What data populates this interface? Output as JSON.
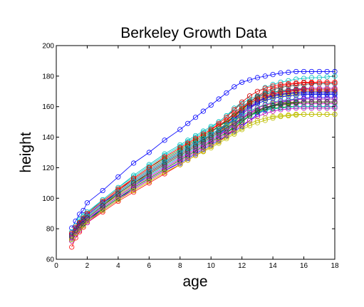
{
  "chart_data": {
    "type": "line",
    "title": "Berkeley Growth Data",
    "xlabel": "age",
    "ylabel": "height",
    "xlim": [
      0,
      18
    ],
    "ylim": [
      60,
      200
    ],
    "xticks": [
      "0",
      "2",
      "4",
      "6",
      "8",
      "10",
      "12",
      "14",
      "16",
      "18"
    ],
    "yticks": [
      "60",
      "80",
      "100",
      "120",
      "140",
      "160",
      "180",
      "200"
    ],
    "grid": false,
    "legend": "none",
    "marker": "circle",
    "x": [
      1,
      1.25,
      1.5,
      1.75,
      2,
      3,
      4,
      5,
      6,
      7,
      8,
      8.5,
      9,
      9.5,
      10,
      10.5,
      11,
      11.5,
      12,
      12.5,
      13,
      13.5,
      14,
      14.5,
      15,
      15.5,
      16,
      16.5,
      17,
      17.5,
      18
    ],
    "series": [
      {
        "color": "#0000ff",
        "values": [
          80.5,
          85,
          89.5,
          92,
          97,
          105,
          114,
          123,
          130,
          138,
          145,
          149,
          153,
          157,
          161,
          165,
          169,
          173,
          176,
          177.5,
          179,
          180,
          181,
          182,
          182.5,
          183,
          183,
          183,
          183,
          183,
          183
        ]
      },
      {
        "color": "#008000",
        "values": [
          76,
          80,
          84,
          86.5,
          89,
          97,
          104,
          111,
          118,
          124,
          130,
          133,
          136,
          138.5,
          141,
          144,
          147,
          151,
          155,
          159,
          162,
          164,
          165.5,
          166.5,
          167,
          167.5,
          168,
          168,
          168,
          168,
          168
        ]
      },
      {
        "color": "#ff0000",
        "values": [
          75,
          79,
          82.5,
          85,
          88,
          96,
          104,
          111,
          118,
          124,
          130,
          133,
          136,
          139,
          142,
          145,
          149,
          153,
          158,
          163,
          167,
          170,
          172,
          173.5,
          174.5,
          175,
          175.5,
          175.5,
          176,
          176,
          176
        ]
      },
      {
        "color": "#00bfbf",
        "values": [
          77,
          81,
          85,
          88,
          90,
          99,
          107,
          114,
          121,
          128,
          134,
          137,
          140,
          143,
          146,
          150,
          154,
          159,
          163,
          167,
          170,
          172.5,
          174.5,
          176,
          177,
          178,
          178.5,
          179,
          179,
          179.5,
          180
        ]
      },
      {
        "color": "#bf00bf",
        "values": [
          74,
          78,
          81,
          84,
          86,
          94,
          101,
          108,
          114,
          120,
          126,
          129,
          132,
          135,
          138,
          141,
          145,
          149,
          153,
          156,
          158,
          159.5,
          160.5,
          161,
          161.5,
          162,
          162,
          162,
          162,
          162,
          162
        ]
      },
      {
        "color": "#bfbf00",
        "values": [
          72,
          76,
          79,
          82,
          85,
          92,
          99,
          105,
          111,
          117,
          122,
          125,
          128,
          130.5,
          133,
          136,
          139,
          142,
          145,
          147.5,
          149.5,
          151,
          152.5,
          153.5,
          154,
          154.5,
          155,
          155,
          155,
          155,
          155
        ]
      },
      {
        "color": "#404040",
        "values": [
          76,
          80,
          83.5,
          86,
          89,
          97,
          105,
          112,
          119,
          125,
          131,
          134,
          137,
          140,
          143,
          147,
          151,
          156,
          160,
          163.5,
          166,
          168,
          169.5,
          170.5,
          171,
          171.5,
          172,
          172,
          172,
          172,
          172
        ]
      },
      {
        "color": "#0000ff",
        "values": [
          75,
          79,
          82,
          85,
          87,
          95,
          102,
          109,
          115,
          121,
          127,
          130,
          133,
          136,
          139,
          142,
          146,
          150,
          155,
          159,
          162,
          164,
          165.5,
          166.5,
          167,
          167.5,
          168,
          168,
          168,
          168,
          168
        ]
      },
      {
        "color": "#008000",
        "values": [
          73,
          77,
          80,
          83,
          86,
          93,
          100,
          107,
          113,
          119,
          125,
          128,
          131,
          134,
          137,
          140,
          143,
          147,
          151,
          154,
          156.5,
          158,
          159,
          159.5,
          160,
          160,
          160,
          160,
          160,
          160,
          160
        ]
      },
      {
        "color": "#ff0000",
        "values": [
          68,
          74,
          78,
          81,
          84,
          91,
          98,
          104,
          110,
          116,
          122,
          125,
          128,
          131,
          134,
          137,
          141,
          145,
          150,
          154,
          157,
          159,
          160.5,
          161.5,
          162,
          162.5,
          163,
          163,
          163,
          163,
          163
        ]
      },
      {
        "color": "#00bfbf",
        "values": [
          78,
          82,
          86,
          88.5,
          91,
          99,
          107,
          115,
          122,
          129,
          135,
          138,
          141,
          144,
          147,
          150,
          154,
          158,
          162,
          165,
          167,
          168.5,
          169.5,
          170,
          170.5,
          171,
          171,
          171,
          171,
          171,
          171
        ]
      },
      {
        "color": "#bf00bf",
        "values": [
          76,
          80,
          83,
          86,
          88,
          96,
          103,
          110,
          117,
          123,
          129,
          132,
          135,
          138,
          141,
          144,
          147,
          151,
          155,
          159,
          163,
          166,
          168,
          169.5,
          170.5,
          171,
          171.5,
          172,
          172,
          172,
          172
        ]
      },
      {
        "color": "#bfbf00",
        "values": [
          74,
          78,
          81,
          84,
          87,
          95,
          102,
          109,
          116,
          122,
          128,
          131,
          134,
          137,
          140,
          143,
          146,
          150,
          154,
          157,
          159.5,
          161,
          162,
          162.5,
          163,
          163,
          163,
          163,
          163,
          163,
          163
        ]
      },
      {
        "color": "#404040",
        "values": [
          75,
          79,
          82,
          85,
          88,
          96,
          104,
          111,
          118,
          124,
          130,
          133,
          136,
          139,
          142,
          145,
          149,
          154,
          159,
          163,
          166.5,
          169,
          171,
          172.5,
          173.5,
          174,
          174.5,
          175,
          175,
          175,
          175
        ]
      },
      {
        "color": "#0000ff",
        "values": [
          74,
          78,
          81,
          83.5,
          86,
          93,
          100,
          106,
          112,
          118,
          123,
          126,
          129,
          132,
          135,
          138,
          141,
          144,
          147,
          151,
          155,
          158,
          160.5,
          162.5,
          164,
          165,
          165.5,
          166,
          166,
          166,
          166
        ]
      },
      {
        "color": "#008000",
        "values": [
          77,
          81,
          84,
          87,
          90,
          98,
          106,
          113,
          120,
          126,
          132,
          135,
          138,
          141,
          144,
          147,
          150,
          154,
          158,
          162,
          165,
          167,
          168.5,
          169.5,
          170,
          170.5,
          171,
          171,
          171,
          171,
          171
        ]
      },
      {
        "color": "#ff0000",
        "values": [
          76,
          80,
          83,
          86,
          89,
          97,
          105,
          113,
          120,
          127,
          133,
          136,
          139,
          142,
          145,
          149,
          153,
          158,
          163,
          167,
          170,
          172,
          173.5,
          174.5,
          175,
          175.5,
          176,
          176,
          176,
          176,
          176
        ]
      },
      {
        "color": "#00bfbf",
        "values": [
          73,
          77,
          80,
          83,
          86,
          94,
          101,
          108,
          115,
          121,
          127,
          130,
          133,
          136,
          139,
          142,
          145,
          148,
          151,
          154,
          156,
          157.5,
          158.5,
          159,
          159.5,
          160,
          160,
          160,
          160,
          160,
          160
        ]
      },
      {
        "color": "#bf00bf",
        "values": [
          72,
          76,
          79,
          82,
          84,
          92,
          99,
          106,
          112,
          118,
          124,
          127,
          130,
          133,
          136,
          139,
          142,
          145,
          148,
          151,
          153.5,
          155.5,
          157,
          158,
          158.5,
          159,
          159,
          159,
          159,
          159,
          159
        ]
      },
      {
        "color": "#bfbf00",
        "values": [
          75,
          79,
          82,
          85,
          88,
          96,
          103,
          110,
          116,
          122,
          128,
          131,
          134,
          137,
          140,
          143,
          147,
          151,
          156,
          160,
          163,
          165,
          166.5,
          167.5,
          168,
          168.5,
          169,
          169,
          169,
          169,
          169
        ]
      },
      {
        "color": "#404040",
        "values": [
          74,
          78,
          81,
          84,
          87,
          95,
          103,
          110,
          117,
          123,
          129,
          132,
          135,
          138,
          141,
          144,
          148,
          152,
          157,
          161,
          164,
          166,
          167.5,
          168.5,
          169,
          169.5,
          170,
          170,
          170,
          170,
          170
        ]
      },
      {
        "color": "#0000ff",
        "values": [
          76,
          80,
          83,
          86,
          89,
          97,
          104,
          111,
          118,
          124,
          130,
          133,
          136,
          139,
          142,
          145,
          148,
          152,
          156,
          160,
          163,
          165.5,
          167,
          168,
          168.5,
          169,
          169,
          169,
          169,
          169,
          169
        ]
      },
      {
        "color": "#008000",
        "values": [
          73,
          77,
          80,
          83,
          85,
          93,
          100,
          107,
          113,
          119,
          125,
          128,
          131,
          134,
          137,
          140,
          143,
          146,
          150,
          154,
          157,
          159,
          160.5,
          161.5,
          162,
          162.5,
          163,
          163,
          163,
          163,
          163
        ]
      },
      {
        "color": "#ff0000",
        "values": [
          77,
          81,
          84,
          87,
          90,
          98,
          106,
          113,
          120,
          127,
          133,
          136,
          139,
          142,
          145,
          148,
          151,
          155,
          159,
          162.5,
          165,
          167,
          168.5,
          169.5,
          170,
          170.5,
          171,
          171,
          171,
          171,
          171
        ]
      },
      {
        "color": "#00bfbf",
        "values": [
          75,
          79,
          82,
          85,
          88,
          96,
          104,
          111,
          118,
          124,
          130,
          133,
          136,
          139,
          142,
          145,
          148,
          151,
          154,
          157,
          159.5,
          161.5,
          163,
          164,
          164.5,
          165,
          165,
          165,
          165,
          165,
          165
        ]
      },
      {
        "color": "#bf00bf",
        "values": [
          74,
          78,
          81,
          84,
          86,
          94,
          101,
          108,
          114,
          120,
          126,
          129,
          132,
          135,
          138,
          141,
          144,
          148,
          152,
          156,
          159,
          161,
          162.5,
          163.5,
          164,
          164.5,
          165,
          165,
          165,
          165,
          165
        ]
      },
      {
        "color": "#bfbf00",
        "values": [
          73,
          77,
          80,
          82,
          85,
          92,
          99,
          105,
          111,
          117,
          122,
          125,
          128,
          131,
          134,
          137,
          140,
          143,
          146,
          149,
          151,
          152.5,
          153.5,
          154,
          154.5,
          155,
          155,
          155,
          155,
          155,
          155
        ]
      },
      {
        "color": "#404040",
        "values": [
          75,
          79,
          82,
          85,
          87,
          95,
          103,
          110,
          116,
          122,
          128,
          131,
          134,
          137,
          140,
          143,
          146,
          149,
          152,
          155,
          157.5,
          159.5,
          161,
          162,
          162.5,
          163,
          163,
          163,
          163,
          163,
          163
        ]
      }
    ]
  }
}
